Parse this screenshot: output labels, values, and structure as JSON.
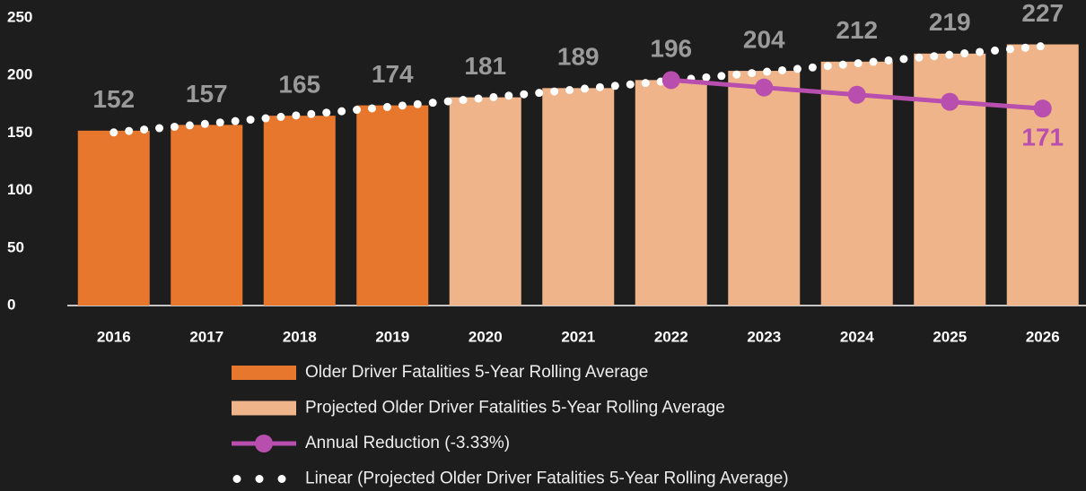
{
  "chart_data": {
    "type": "bar",
    "categories": [
      "2016",
      "2017",
      "2018",
      "2019",
      "2020",
      "2021",
      "2022",
      "2023",
      "2024",
      "2025",
      "2026"
    ],
    "series": [
      {
        "name": "Older Driver Fatalities 5-Year Rolling Average",
        "color": "#e8772e",
        "values": [
          152,
          157,
          165,
          174,
          null,
          null,
          null,
          null,
          null,
          null,
          null
        ]
      },
      {
        "name": "Projected Older Driver Fatalities 5-Year Rolling Average",
        "color": "#f0b48a",
        "values": [
          null,
          null,
          null,
          null,
          181,
          189,
          196,
          204,
          212,
          219,
          227
        ]
      },
      {
        "name": "Annual Reduction (-3.33%)",
        "type": "line",
        "color": "#b84fae",
        "values": [
          null,
          null,
          null,
          null,
          null,
          null,
          196,
          189.5,
          183.2,
          177.1,
          171.2
        ],
        "value_labels": [
          null,
          null,
          null,
          null,
          null,
          null,
          null,
          null,
          null,
          null,
          "171"
        ]
      },
      {
        "name": "Linear (Projected Older Driver Fatalities 5-Year Rolling Average)",
        "type": "trendline",
        "color": "#ffffff",
        "values": [
          150.5,
          158,
          165.5,
          173,
          180.5,
          188,
          195.5,
          203,
          210.5,
          218,
          225.5
        ]
      }
    ],
    "ylim": [
      0,
      250
    ],
    "yticks": [
      0,
      50,
      100,
      150,
      200,
      250
    ]
  }
}
